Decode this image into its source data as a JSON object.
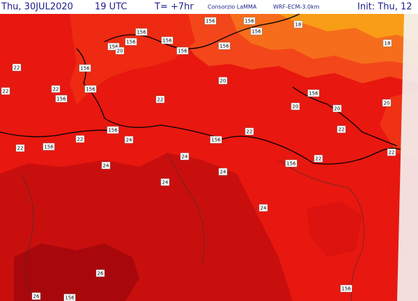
{
  "header": {
    "date": "Thu, 30JUL2020",
    "time": "19 UTC",
    "step": "T= +7hr",
    "source": "Consorzio LaMMA",
    "model": "WRF-ECM-3.0km",
    "init": "Init: Thu, 12"
  },
  "contour_labels": [
    156,
    156,
    156,
    156,
    156,
    156,
    156,
    18,
    18,
    156,
    20,
    156,
    22,
    156,
    22,
    22,
    156,
    156,
    20,
    156,
    20,
    20,
    20,
    22,
    156,
    24,
    22,
    22,
    156,
    22,
    22,
    156,
    22,
    24,
    156,
    22,
    24,
    24,
    24,
    24,
    26,
    26,
    156,
    156
  ]
}
